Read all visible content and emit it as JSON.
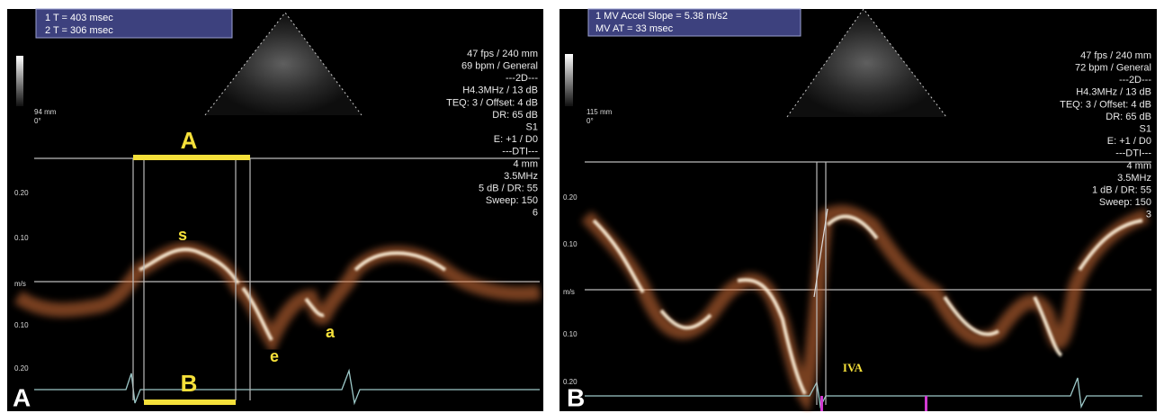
{
  "panels": [
    {
      "label": "A",
      "measurements": [
        "1  T = 403 msec",
        "2  T = 306 msec"
      ],
      "depth": "94 mm",
      "angle": "0°",
      "settings": [
        "47 fps / 240 mm",
        "69 bpm / General",
        "---2D---",
        "H4.3MHz / 13 dB",
        "TEQ: 3 / Offset: 4 dB",
        "DR: 65 dB",
        "S1",
        "E: +1 / D0",
        "---DTI---",
        "4 mm",
        "3.5MHz",
        "5 dB / DR: 55",
        "Sweep: 150",
        "6"
      ],
      "scale": [
        "0.20",
        "0.10",
        "m/s",
        "0.10",
        "0.20"
      ],
      "annotations": [
        "A",
        "B",
        "s",
        "e",
        "a"
      ]
    },
    {
      "label": "B",
      "measurements": [
        "1  MV Accel Slope = 5.38 m/s2",
        "MV AT = 33 msec"
      ],
      "depth": "115 mm",
      "angle": "0°",
      "settings": [
        "47 fps / 240 mm",
        "72 bpm / General",
        "---2D---",
        "H4.3MHz / 13 dB",
        "TEQ: 3 / Offset: 4 dB",
        "DR: 65 dB",
        "S1",
        "E: +1 / D0",
        "---DTI---",
        "4 mm",
        "3.5MHz",
        "1 dB / DR: 55",
        "Sweep: 150",
        "3"
      ],
      "scale": [
        "0.20",
        "0.10",
        "m/s",
        "0.10",
        "0.20"
      ],
      "annotations": [
        "IVA"
      ]
    }
  ]
}
